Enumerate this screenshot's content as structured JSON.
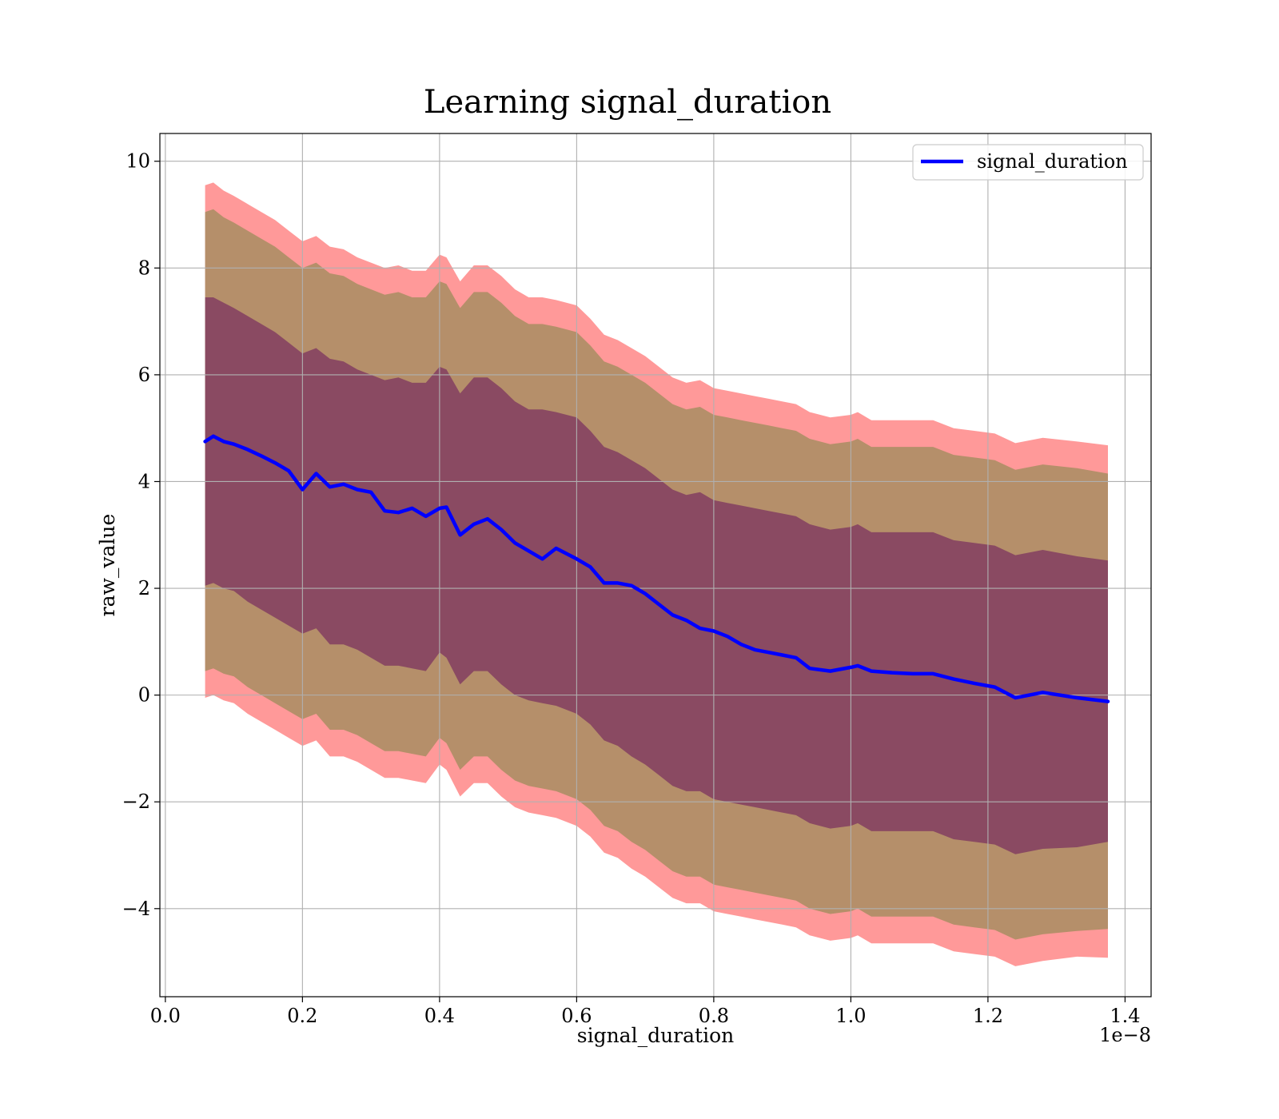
{
  "chart_data": {
    "type": "area",
    "title": "Learning signal_duration",
    "xlabel": "signal_duration",
    "ylabel": "raw_value",
    "x_offset_label": "1e−8",
    "xlim": [
      -0.008,
      1.438
    ],
    "ylim": [
      -5.65,
      10.52
    ],
    "grid": true,
    "legend_position": "top-right",
    "x_ticks": [
      {
        "value": 0.0,
        "label": "0.0"
      },
      {
        "value": 0.2,
        "label": "0.2"
      },
      {
        "value": 0.4,
        "label": "0.4"
      },
      {
        "value": 0.6,
        "label": "0.6"
      },
      {
        "value": 0.8,
        "label": "0.8"
      },
      {
        "value": 1.0,
        "label": "1.0"
      },
      {
        "value": 1.2,
        "label": "1.2"
      },
      {
        "value": 1.4,
        "label": "1.4"
      }
    ],
    "y_ticks": [
      {
        "value": -4,
        "label": "−4"
      },
      {
        "value": -2,
        "label": "−2"
      },
      {
        "value": 0,
        "label": "0"
      },
      {
        "value": 2,
        "label": "2"
      },
      {
        "value": 4,
        "label": "4"
      },
      {
        "value": 6,
        "label": "6"
      },
      {
        "value": 8,
        "label": "8"
      },
      {
        "value": 10,
        "label": "10"
      }
    ],
    "colors": {
      "line": "#0000ff",
      "band_outer": "#ff9999",
      "band_middle": "#b58f6a",
      "band_inner": "#8a4a62"
    },
    "x": [
      0.058,
      0.07,
      0.085,
      0.1,
      0.12,
      0.14,
      0.16,
      0.18,
      0.2,
      0.22,
      0.24,
      0.26,
      0.28,
      0.3,
      0.32,
      0.34,
      0.36,
      0.38,
      0.4,
      0.41,
      0.43,
      0.45,
      0.47,
      0.49,
      0.51,
      0.53,
      0.55,
      0.57,
      0.6,
      0.62,
      0.64,
      0.66,
      0.68,
      0.7,
      0.72,
      0.74,
      0.76,
      0.78,
      0.8,
      0.82,
      0.84,
      0.86,
      0.88,
      0.9,
      0.92,
      0.94,
      0.97,
      1.0,
      1.01,
      1.03,
      1.06,
      1.09,
      1.12,
      1.15,
      1.18,
      1.21,
      1.24,
      1.28,
      1.33,
      1.375
    ],
    "series": [
      {
        "name": "signal_duration",
        "role": "line",
        "values": [
          4.75,
          4.85,
          4.75,
          4.7,
          4.6,
          4.48,
          4.35,
          4.2,
          3.85,
          4.15,
          3.9,
          3.95,
          3.85,
          3.8,
          3.45,
          3.42,
          3.5,
          3.35,
          3.5,
          3.52,
          3.0,
          3.2,
          3.3,
          3.1,
          2.85,
          2.7,
          2.55,
          2.75,
          2.55,
          2.4,
          2.1,
          2.1,
          2.05,
          1.9,
          1.7,
          1.5,
          1.4,
          1.25,
          1.2,
          1.1,
          0.95,
          0.85,
          0.8,
          0.75,
          0.7,
          0.5,
          0.45,
          0.52,
          0.55,
          0.45,
          0.42,
          0.4,
          0.4,
          0.3,
          0.22,
          0.15,
          -0.05,
          0.05,
          -0.05,
          -0.12
        ]
      },
      {
        "name": "outer band upper",
        "role": "band",
        "values": [
          9.55,
          9.6,
          9.45,
          9.35,
          9.2,
          9.05,
          8.9,
          8.7,
          8.5,
          8.6,
          8.4,
          8.35,
          8.2,
          8.1,
          8.0,
          8.05,
          7.95,
          7.95,
          8.25,
          8.2,
          7.75,
          8.05,
          8.05,
          7.85,
          7.6,
          7.45,
          7.45,
          7.4,
          7.3,
          7.05,
          6.75,
          6.65,
          6.5,
          6.35,
          6.15,
          5.95,
          5.85,
          5.9,
          5.75,
          5.7,
          5.65,
          5.6,
          5.55,
          5.5,
          5.45,
          5.3,
          5.2,
          5.25,
          5.3,
          5.15,
          5.15,
          5.15,
          5.15,
          5.0,
          4.95,
          4.9,
          4.72,
          4.82,
          4.75,
          4.68
        ]
      },
      {
        "name": "middle band upper",
        "role": "band",
        "values": [
          9.05,
          9.1,
          8.95,
          8.85,
          8.7,
          8.55,
          8.4,
          8.2,
          8.0,
          8.1,
          7.9,
          7.85,
          7.7,
          7.6,
          7.5,
          7.55,
          7.45,
          7.45,
          7.75,
          7.7,
          7.25,
          7.55,
          7.55,
          7.35,
          7.1,
          6.95,
          6.95,
          6.9,
          6.8,
          6.55,
          6.25,
          6.15,
          6.0,
          5.85,
          5.65,
          5.45,
          5.35,
          5.4,
          5.25,
          5.2,
          5.15,
          5.1,
          5.05,
          5.0,
          4.95,
          4.8,
          4.7,
          4.75,
          4.8,
          4.65,
          4.65,
          4.65,
          4.65,
          4.5,
          4.45,
          4.4,
          4.22,
          4.32,
          4.25,
          4.15
        ]
      },
      {
        "name": "inner band upper",
        "role": "band",
        "values": [
          7.45,
          7.45,
          7.35,
          7.25,
          7.1,
          6.95,
          6.8,
          6.6,
          6.4,
          6.5,
          6.3,
          6.25,
          6.1,
          6.0,
          5.9,
          5.95,
          5.85,
          5.85,
          6.15,
          6.1,
          5.65,
          5.95,
          5.95,
          5.75,
          5.5,
          5.35,
          5.35,
          5.3,
          5.2,
          4.95,
          4.65,
          4.55,
          4.4,
          4.25,
          4.05,
          3.85,
          3.75,
          3.8,
          3.65,
          3.6,
          3.55,
          3.5,
          3.45,
          3.4,
          3.35,
          3.2,
          3.1,
          3.15,
          3.2,
          3.05,
          3.05,
          3.05,
          3.05,
          2.9,
          2.85,
          2.8,
          2.62,
          2.72,
          2.6,
          2.52
        ]
      },
      {
        "name": "inner band lower",
        "role": "band",
        "values": [
          2.05,
          2.1,
          2.0,
          1.95,
          1.75,
          1.6,
          1.45,
          1.3,
          1.15,
          1.25,
          0.95,
          0.95,
          0.85,
          0.7,
          0.55,
          0.55,
          0.5,
          0.45,
          0.8,
          0.7,
          0.2,
          0.45,
          0.45,
          0.2,
          0.0,
          -0.1,
          -0.15,
          -0.2,
          -0.35,
          -0.55,
          -0.85,
          -0.95,
          -1.15,
          -1.3,
          -1.5,
          -1.7,
          -1.8,
          -1.8,
          -1.95,
          -2.0,
          -2.05,
          -2.1,
          -2.15,
          -2.2,
          -2.25,
          -2.4,
          -2.5,
          -2.45,
          -2.4,
          -2.55,
          -2.55,
          -2.55,
          -2.55,
          -2.7,
          -2.75,
          -2.8,
          -2.98,
          -2.88,
          -2.85,
          -2.75
        ]
      },
      {
        "name": "middle band lower",
        "role": "band",
        "values": [
          0.45,
          0.5,
          0.4,
          0.35,
          0.15,
          0.0,
          -0.15,
          -0.3,
          -0.45,
          -0.35,
          -0.65,
          -0.65,
          -0.75,
          -0.9,
          -1.05,
          -1.05,
          -1.1,
          -1.15,
          -0.8,
          -0.9,
          -1.4,
          -1.15,
          -1.15,
          -1.4,
          -1.6,
          -1.7,
          -1.75,
          -1.8,
          -1.95,
          -2.15,
          -2.45,
          -2.55,
          -2.75,
          -2.9,
          -3.1,
          -3.3,
          -3.4,
          -3.4,
          -3.55,
          -3.6,
          -3.65,
          -3.7,
          -3.75,
          -3.8,
          -3.85,
          -4.0,
          -4.1,
          -4.05,
          -4.0,
          -4.15,
          -4.15,
          -4.15,
          -4.15,
          -4.3,
          -4.35,
          -4.4,
          -4.58,
          -4.48,
          -4.42,
          -4.38
        ]
      },
      {
        "name": "outer band lower",
        "role": "band",
        "values": [
          -0.05,
          0.0,
          -0.1,
          -0.15,
          -0.35,
          -0.5,
          -0.65,
          -0.8,
          -0.95,
          -0.85,
          -1.15,
          -1.15,
          -1.25,
          -1.4,
          -1.55,
          -1.55,
          -1.6,
          -1.65,
          -1.3,
          -1.4,
          -1.9,
          -1.65,
          -1.65,
          -1.9,
          -2.1,
          -2.2,
          -2.25,
          -2.3,
          -2.45,
          -2.65,
          -2.95,
          -3.05,
          -3.25,
          -3.4,
          -3.6,
          -3.8,
          -3.9,
          -3.9,
          -4.05,
          -4.1,
          -4.15,
          -4.2,
          -4.25,
          -4.3,
          -4.35,
          -4.5,
          -4.6,
          -4.55,
          -4.5,
          -4.65,
          -4.65,
          -4.65,
          -4.65,
          -4.8,
          -4.85,
          -4.9,
          -5.08,
          -4.98,
          -4.9,
          -4.92
        ]
      }
    ]
  }
}
